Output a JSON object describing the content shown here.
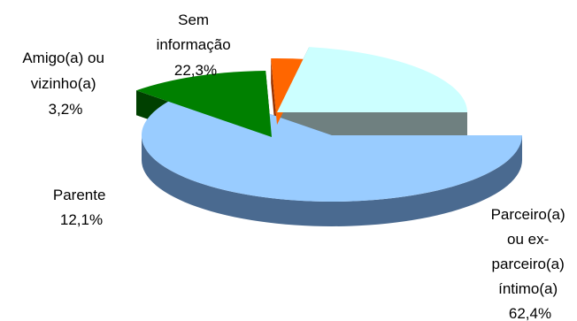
{
  "chart_data": {
    "type": "pie",
    "style": "3d-exploded",
    "categories": [
      "Parceiro(a) ou ex-parceiro(a) íntimo(a)",
      "Parente",
      "Amigo(a) ou vizinho(a)",
      "Sem informação"
    ],
    "values": [
      62.4,
      12.1,
      3.2,
      22.3
    ],
    "value_labels": [
      "62,4%",
      "12,1%",
      "3,2%",
      "22,3%"
    ],
    "label_lines": [
      [
        "Parceiro(a)",
        "ou ex-",
        "parceiro(a)",
        "íntimo(a)",
        "62,4%"
      ],
      [
        "Parente",
        "12,1%"
      ],
      [
        "Amigo(a) ou",
        "vizinho(a)",
        "3,2%"
      ],
      [
        "Sem",
        "informação",
        "22,3%"
      ]
    ],
    "colors": {
      "top": [
        "#99ccff",
        "#008000",
        "#ff6600",
        "#ccffff"
      ],
      "side": [
        "#4a6a90",
        "#004000",
        "#993300",
        "#6f8080"
      ]
    }
  }
}
